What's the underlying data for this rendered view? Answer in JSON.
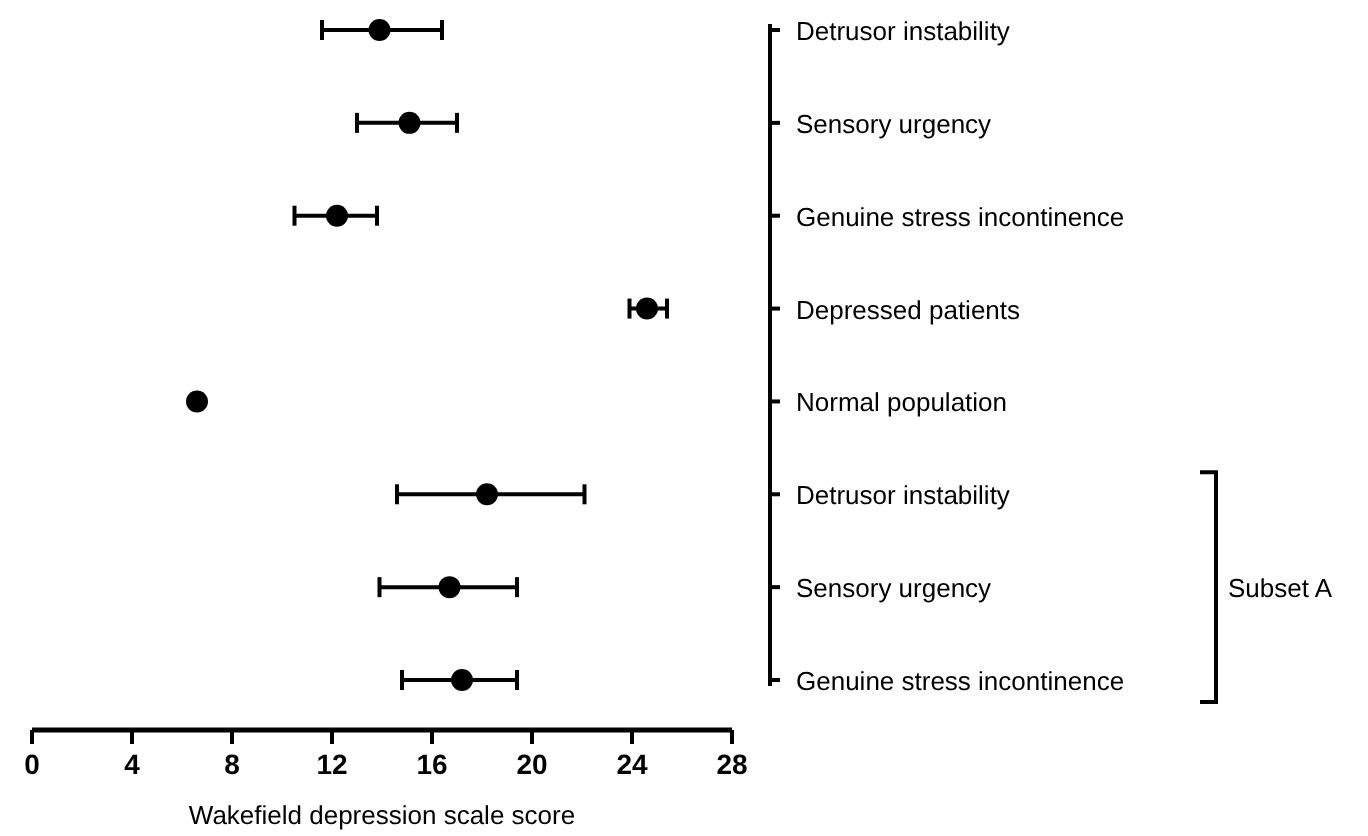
{
  "chart_data": {
    "type": "scatter",
    "orientation": "horizontal",
    "xlabel": "Wakefield depression scale score",
    "categories": [
      "Detrusor instability",
      "Sensory urgency",
      "Genuine stress incontinence",
      "Depressed patients",
      "Normal population",
      "Detrusor instability",
      "Sensory urgency",
      "Genuine stress incontinence"
    ],
    "values": [
      13.9,
      15.1,
      12.2,
      24.6,
      6.6,
      18.2,
      16.7,
      17.2
    ],
    "errors": [
      [
        11.6,
        16.4
      ],
      [
        13.0,
        17.0
      ],
      [
        10.5,
        13.8
      ],
      [
        23.9,
        25.4
      ],
      null,
      [
        14.6,
        22.1
      ],
      [
        13.9,
        19.4
      ],
      [
        14.8,
        19.4
      ]
    ],
    "color": "#000000",
    "marker": "circle",
    "xlim": [
      0,
      28
    ],
    "xticks": [
      0,
      4,
      8,
      12,
      16,
      20,
      24,
      28
    ],
    "annotations": [
      "Subset A"
    ]
  }
}
